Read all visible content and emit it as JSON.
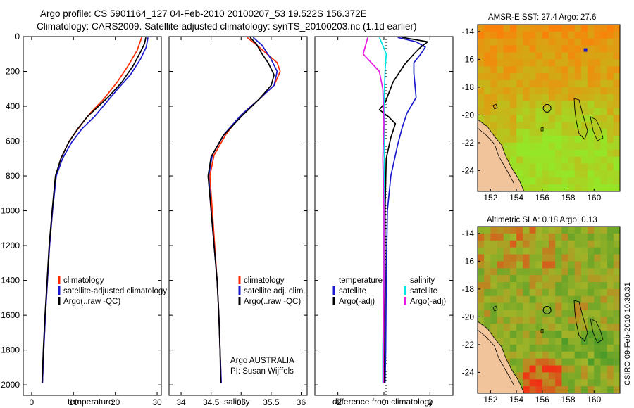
{
  "figure": {
    "title_line1": "Argo profile: CS 5901164_127 04-Feb-2010 20100207_53 19.522S 156.372E",
    "title_line2": "Climatology: CARS2009. Satellite-adjusted climatology: synTS_20100203.nc (1.1d earlier)",
    "side_label": "CSIRO 09-Feb-2010 10:30:31",
    "colors": {
      "climatology": "#ff2a00",
      "satellite": "#1a1acc",
      "argo": "#000000",
      "sat_salinity": "#00e5e5",
      "argo_salinity": "#e51ae5",
      "land": "#f2c49b"
    }
  },
  "chart_data": [
    {
      "id": "temperature",
      "type": "line",
      "xlabel": "temperature",
      "ylabel": "",
      "xlim": [
        -2,
        31
      ],
      "ylim": [
        2060,
        0
      ],
      "xticks": [
        0,
        10,
        20,
        30
      ],
      "yticks": [
        0,
        200,
        400,
        600,
        800,
        1000,
        1200,
        1400,
        1600,
        1800,
        2000
      ],
      "legend": [
        "climatology",
        "satellite-adjusted climatology",
        "Argo(..raw -QC)"
      ],
      "series": [
        {
          "name": "climatology",
          "color": "#ff2a00",
          "points": [
            [
              26.3,
              5
            ],
            [
              25.2,
              80
            ],
            [
              23.0,
              170
            ],
            [
              20.5,
              260
            ],
            [
              17.2,
              360
            ],
            [
              14.0,
              440
            ],
            [
              11.4,
              520
            ],
            [
              9.0,
              600
            ],
            [
              7.0,
              700
            ],
            [
              5.8,
              800
            ],
            [
              5.0,
              1000
            ],
            [
              4.3,
              1200
            ],
            [
              3.8,
              1400
            ],
            [
              3.3,
              1600
            ],
            [
              2.9,
              1800
            ],
            [
              2.6,
              1990
            ]
          ]
        },
        {
          "name": "satellite-adjusted climatology",
          "color": "#1a1acc",
          "points": [
            [
              27.8,
              5
            ],
            [
              27.4,
              60
            ],
            [
              26.0,
              130
            ],
            [
              23.6,
              220
            ],
            [
              20.6,
              300
            ],
            [
              17.8,
              380
            ],
            [
              15.0,
              460
            ],
            [
              12.0,
              530
            ],
            [
              9.5,
              610
            ],
            [
              7.4,
              700
            ],
            [
              5.9,
              800
            ],
            [
              5.0,
              1000
            ],
            [
              4.3,
              1200
            ],
            [
              3.8,
              1400
            ],
            [
              3.3,
              1600
            ],
            [
              2.9,
              1800
            ],
            [
              2.6,
              1990
            ]
          ]
        },
        {
          "name": "Argo(..raw -QC)",
          "color": "#000000",
          "points": [
            [
              27.3,
              5
            ],
            [
              27.0,
              40
            ],
            [
              26.0,
              90
            ],
            [
              24.2,
              170
            ],
            [
              21.6,
              260
            ],
            [
              18.6,
              340
            ],
            [
              16.0,
              400
            ],
            [
              13.3,
              460
            ],
            [
              11.0,
              530
            ],
            [
              8.8,
              610
            ],
            [
              7.0,
              700
            ],
            [
              5.7,
              800
            ],
            [
              4.9,
              1000
            ],
            [
              4.2,
              1200
            ],
            [
              3.7,
              1400
            ],
            [
              3.2,
              1600
            ],
            [
              2.8,
              1800
            ],
            [
              2.5,
              1990
            ]
          ]
        }
      ]
    },
    {
      "id": "salinity",
      "type": "line",
      "xlabel": "salinity",
      "xlim": [
        33.8,
        36.1
      ],
      "ylim": [
        2060,
        0
      ],
      "xticks": [
        34,
        34.5,
        35,
        35.5,
        36
      ],
      "legend": [
        "climatology",
        "satellite adj. clim.",
        "Argo(..raw -QC)"
      ],
      "annotation_line1": "Argo AUSTRALIA",
      "annotation_line2": "PI: Susan Wijffels",
      "series": [
        {
          "name": "climatology",
          "color": "#ff2a00",
          "points": [
            [
              35.1,
              5
            ],
            [
              35.3,
              60
            ],
            [
              35.6,
              150
            ],
            [
              35.65,
              200
            ],
            [
              35.55,
              280
            ],
            [
              35.3,
              360
            ],
            [
              35.0,
              450
            ],
            [
              34.75,
              560
            ],
            [
              34.55,
              680
            ],
            [
              34.48,
              800
            ],
            [
              34.52,
              1000
            ],
            [
              34.56,
              1200
            ],
            [
              34.6,
              1400
            ],
            [
              34.63,
              1600
            ],
            [
              34.65,
              1800
            ],
            [
              34.67,
              1990
            ]
          ]
        },
        {
          "name": "satellite adj. clim.",
          "color": "#1a1acc",
          "points": [
            [
              35.2,
              5
            ],
            [
              35.35,
              50
            ],
            [
              35.5,
              130
            ],
            [
              35.6,
              200
            ],
            [
              35.55,
              280
            ],
            [
              35.3,
              360
            ],
            [
              35.0,
              450
            ],
            [
              34.72,
              560
            ],
            [
              34.52,
              680
            ],
            [
              34.46,
              800
            ],
            [
              34.5,
              1000
            ],
            [
              34.55,
              1200
            ],
            [
              34.6,
              1400
            ],
            [
              34.63,
              1600
            ],
            [
              34.65,
              1800
            ],
            [
              34.67,
              1990
            ]
          ]
        },
        {
          "name": "Argo(..raw -QC)",
          "color": "#000000",
          "points": [
            [
              35.15,
              5
            ],
            [
              35.25,
              40
            ],
            [
              35.35,
              100
            ],
            [
              35.45,
              150
            ],
            [
              35.55,
              220
            ],
            [
              35.5,
              280
            ],
            [
              35.3,
              360
            ],
            [
              35.0,
              460
            ],
            [
              34.7,
              570
            ],
            [
              34.5,
              690
            ],
            [
              34.45,
              800
            ],
            [
              34.5,
              1000
            ],
            [
              34.55,
              1200
            ],
            [
              34.6,
              1400
            ],
            [
              34.63,
              1600
            ],
            [
              34.65,
              1800
            ],
            [
              34.66,
              1990
            ]
          ]
        }
      ]
    },
    {
      "id": "difference",
      "type": "line",
      "xlabel": "difference from climatology",
      "xlim": [
        -3,
        3
      ],
      "ylim": [
        2060,
        0
      ],
      "xticks": [
        -2,
        0,
        2
      ],
      "legend_temperature_header": "temperature",
      "legend_salinity_header": "salinity",
      "legend": [
        "satellite",
        "Argo(-adj)",
        "satellite",
        "Argo(-adj)"
      ],
      "series": [
        {
          "name": "temperature satellite",
          "color": "#1a1acc",
          "points": [
            [
              0.6,
              5
            ],
            [
              1.4,
              30
            ],
            [
              1.8,
              60
            ],
            [
              1.6,
              100
            ],
            [
              1.3,
              150
            ],
            [
              1.3,
              210
            ],
            [
              1.35,
              280
            ],
            [
              1.4,
              350
            ],
            [
              1.0,
              440
            ],
            [
              0.8,
              520
            ],
            [
              0.6,
              620
            ],
            [
              0.3,
              800
            ],
            [
              0.15,
              1000
            ],
            [
              0.1,
              1400
            ],
            [
              0.08,
              1800
            ],
            [
              0.05,
              1990
            ]
          ]
        },
        {
          "name": "temperature Argo(-adj)",
          "color": "#000000",
          "points": [
            [
              0.8,
              5
            ],
            [
              1.9,
              30
            ],
            [
              1.6,
              60
            ],
            [
              1.3,
              100
            ],
            [
              0.9,
              160
            ],
            [
              0.4,
              260
            ],
            [
              0.05,
              380
            ],
            [
              -0.2,
              420
            ],
            [
              0.2,
              460
            ],
            [
              0.5,
              500
            ],
            [
              0.3,
              580
            ],
            [
              0.1,
              700
            ],
            [
              0.05,
              1000
            ],
            [
              0.05,
              1400
            ],
            [
              0.03,
              1800
            ],
            [
              0.02,
              1990
            ]
          ]
        },
        {
          "name": "salinity satellite",
          "color": "#00e5e5",
          "points": [
            [
              -0.2,
              5
            ],
            [
              -0.05,
              50
            ],
            [
              0.1,
              100
            ],
            [
              0.05,
              200
            ],
            [
              0.0,
              400
            ],
            [
              0.02,
              700
            ],
            [
              0.0,
              1000
            ],
            [
              0.0,
              1400
            ],
            [
              -0.05,
              1800
            ],
            [
              -0.05,
              1990
            ]
          ]
        },
        {
          "name": "salinity Argo(-adj)",
          "color": "#e51ae5",
          "points": [
            [
              -0.7,
              5
            ],
            [
              -0.9,
              100
            ],
            [
              -0.2,
              200
            ],
            [
              -0.05,
              300
            ],
            [
              0.0,
              500
            ],
            [
              -0.05,
              700
            ],
            [
              0.0,
              1000
            ],
            [
              0.0,
              1400
            ],
            [
              -0.02,
              1800
            ],
            [
              -0.02,
              1990
            ]
          ]
        }
      ]
    }
  ],
  "maps": [
    {
      "id": "sst",
      "title": "AMSR-E SST: 27.4 Argo: 27.6",
      "xlim": [
        151,
        162
      ],
      "ylim": [
        -25.5,
        -13.5
      ],
      "xticks": [
        152,
        154,
        156,
        158,
        160
      ],
      "yticks": [
        -14,
        -16,
        -18,
        -20,
        -22,
        -24
      ],
      "float_position": [
        156.372,
        -19.522
      ]
    },
    {
      "id": "sla",
      "title": "Altimetric SLA: 0.18 Argo: 0.13",
      "xlim": [
        151,
        162
      ],
      "ylim": [
        -25.5,
        -13.5
      ],
      "xticks": [
        152,
        154,
        156,
        158,
        160
      ],
      "yticks": [
        -14,
        -16,
        -18,
        -20,
        -22,
        -24
      ],
      "float_position": [
        156.372,
        -19.522
      ]
    }
  ]
}
